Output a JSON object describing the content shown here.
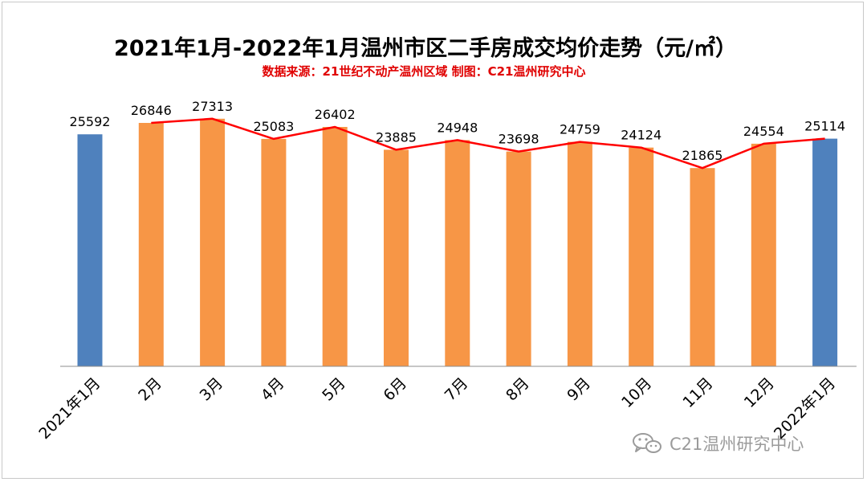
{
  "chart_data": {
    "type": "bar",
    "title": "2021年1月-2022年1月温州市区二手房成交均价走势（元/㎡）",
    "subtitle": "数据来源：21世纪不动产温州区域  制图：C21温州研究中心",
    "categories": [
      "2021年1月",
      "2月",
      "3月",
      "4月",
      "5月",
      "6月",
      "7月",
      "8月",
      "9月",
      "10月",
      "11月",
      "12月",
      "2022年1月"
    ],
    "values": [
      25592,
      26846,
      27313,
      25083,
      26402,
      23885,
      24948,
      23698,
      24759,
      24124,
      21865,
      24554,
      25114
    ],
    "bar_colors": [
      "#4f81bd",
      "#f79646",
      "#f79646",
      "#f79646",
      "#f79646",
      "#f79646",
      "#f79646",
      "#f79646",
      "#f79646",
      "#f79646",
      "#f79646",
      "#f79646",
      "#4f81bd"
    ],
    "trend_line": {
      "color": "#ff0000",
      "values": [
        null,
        26846,
        27313,
        25083,
        26402,
        23885,
        24948,
        23698,
        24759,
        24124,
        21865,
        24554,
        25114
      ]
    },
    "ylim": [
      0,
      28000
    ],
    "grid": false,
    "legend": "none",
    "data_labels": true
  },
  "watermark": {
    "text": "C21温州研究中心",
    "icon": "wechat-icon"
  }
}
